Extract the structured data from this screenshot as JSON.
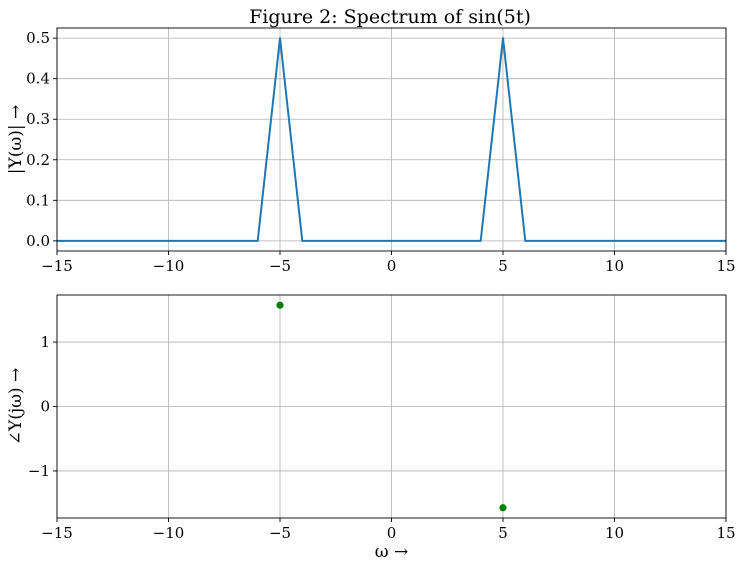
{
  "figure": {
    "title": "Figure 2: Spectrum of sin(5t)"
  },
  "chart_data": [
    {
      "type": "line",
      "ylabel": "|Y(ω)| →",
      "xlabel": "",
      "xlim": [
        -15,
        15
      ],
      "ylim": [
        -0.025,
        0.525
      ],
      "grid": true,
      "xticks": [
        -15,
        -10,
        -5,
        0,
        5,
        10,
        15
      ],
      "xtick_labels": [
        "−15",
        "−10",
        "−5",
        "0",
        "5",
        "10",
        "15"
      ],
      "yticks": [
        0.0,
        0.1,
        0.2,
        0.3,
        0.4,
        0.5
      ],
      "ytick_labels": [
        "0.0",
        "0.1",
        "0.2",
        "0.3",
        "0.4",
        "0.5"
      ],
      "series": [
        {
          "color": "#1f77b4",
          "x": [
            -15,
            -6,
            -5,
            -4,
            4,
            5,
            6,
            15
          ],
          "y": [
            0,
            0,
            0.5,
            0,
            0,
            0.5,
            0,
            0
          ]
        }
      ]
    },
    {
      "type": "scatter",
      "ylabel": "∠Y(jω) →",
      "xlabel": "ω →",
      "xlim": [
        -15,
        15
      ],
      "ylim": [
        -1.73,
        1.73
      ],
      "grid": true,
      "xticks": [
        -15,
        -10,
        -5,
        0,
        5,
        10,
        15
      ],
      "xtick_labels": [
        "−15",
        "−10",
        "−5",
        "0",
        "5",
        "10",
        "15"
      ],
      "yticks": [
        -1,
        0,
        1
      ],
      "ytick_labels": [
        "−1",
        "0",
        "1"
      ],
      "series": [
        {
          "color": "#008000",
          "x": [
            -5,
            5
          ],
          "y": [
            1.5708,
            -1.5708
          ]
        }
      ]
    }
  ]
}
